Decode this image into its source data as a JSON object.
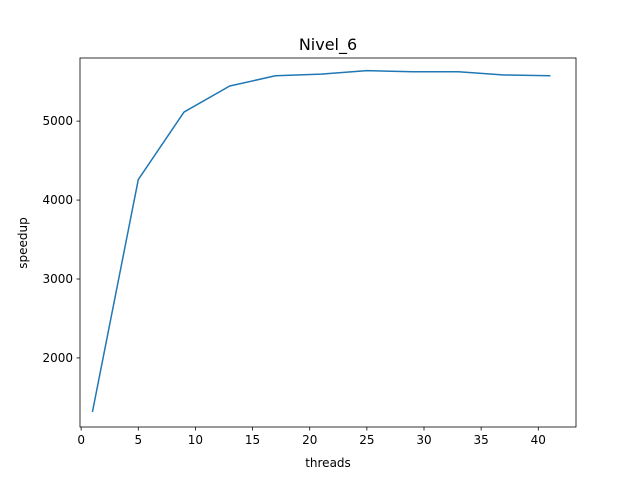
{
  "chart_data": {
    "type": "line",
    "title": "Nivel_6",
    "xlabel": "threads",
    "ylabel": "speedup",
    "xlim": [
      -0.1,
      43.3
    ],
    "ylim": [
      1125,
      5800
    ],
    "xticks": [
      0,
      5,
      10,
      15,
      20,
      25,
      30,
      35,
      40
    ],
    "yticks": [
      2000,
      3000,
      4000,
      5000
    ],
    "grid": false,
    "series": [
      {
        "color": "#1f77b4",
        "x": [
          1,
          5,
          9,
          13,
          17,
          21,
          25,
          29,
          33,
          37,
          41
        ],
        "y": [
          1325,
          4260,
          5115,
          5445,
          5575,
          5595,
          5640,
          5625,
          5625,
          5585,
          5575
        ]
      }
    ]
  }
}
